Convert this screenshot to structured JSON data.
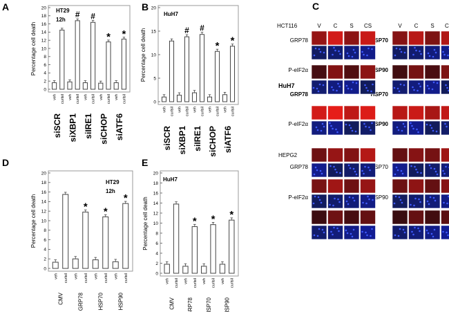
{
  "chart_data": [
    {
      "panel": "A",
      "type": "bar",
      "cell_line_label": "HT29",
      "time_label": "12h",
      "ylabel": "Percentage cell death",
      "ylim": [
        0,
        20
      ],
      "yticks": [
        "0",
        "2",
        "4",
        "6",
        "8",
        "10",
        "12",
        "14",
        "16",
        "18",
        "20"
      ],
      "bar_labels": [
        "veh",
        "curlsil"
      ],
      "groups": [
        "siSCR",
        "siXBP1",
        "siIRE1",
        "siCHOP",
        "siATF6"
      ],
      "series": [
        {
          "name": "veh",
          "values": [
            1.6,
            1.8,
            1.6,
            1.5,
            1.6
          ]
        },
        {
          "name": "curlsil",
          "values": [
            14.5,
            16.8,
            16.4,
            11.6,
            12.3
          ]
        }
      ],
      "markers": [
        "",
        "#",
        "#",
        "*",
        "*"
      ]
    },
    {
      "panel": "B",
      "type": "bar",
      "cell_line_label": "HuH7",
      "ylabel": "Percentage cell death",
      "ylim": [
        0,
        20
      ],
      "yticks": [
        "0",
        "5",
        "10",
        "15",
        "20"
      ],
      "bar_labels": [
        "veh",
        "curlsil"
      ],
      "groups": [
        "siSCR",
        "siXBP1",
        "siIRE1",
        "siCHOP",
        "siATF6"
      ],
      "series": [
        {
          "name": "veh",
          "values": [
            1.0,
            1.4,
            1.9,
            1.0,
            1.5
          ]
        },
        {
          "name": "curlsil",
          "values": [
            12.9,
            13.8,
            14.3,
            10.7,
            11.8
          ]
        }
      ],
      "markers": [
        "",
        "#",
        "#",
        "*",
        "*"
      ]
    },
    {
      "panel": "D",
      "type": "bar",
      "cell_line_label": "HT29",
      "time_label": "12h",
      "ylabel": "Percentage cell death",
      "ylim": [
        0,
        20
      ],
      "yticks": [
        "0",
        "2",
        "4",
        "6",
        "8",
        "10",
        "12",
        "14",
        "16",
        "18",
        "20"
      ],
      "bar_labels": [
        "veh",
        "curlsil"
      ],
      "groups": [
        "CMV",
        "GRP78",
        "HSP70",
        "HSP90"
      ],
      "series": [
        {
          "name": "veh",
          "values": [
            1.3,
            2.0,
            1.8,
            1.4
          ]
        },
        {
          "name": "curlsil",
          "values": [
            15.5,
            11.8,
            10.8,
            13.6
          ]
        }
      ],
      "markers": [
        "",
        "*",
        "*",
        "*"
      ]
    },
    {
      "panel": "E",
      "type": "bar",
      "cell_line_label": "HuH7",
      "ylabel": "Percentage cell death",
      "ylim": [
        0,
        20
      ],
      "yticks": [
        "0",
        "2",
        "4",
        "6",
        "8",
        "10",
        "12",
        "14",
        "16",
        "18",
        "20"
      ],
      "bar_labels": [
        "veh",
        "curlsil"
      ],
      "groups": [
        "CMV",
        "GRP78",
        "HSP70",
        "HSP90"
      ],
      "series": [
        {
          "name": "veh",
          "values": [
            1.8,
            1.4,
            1.4,
            1.8
          ]
        },
        {
          "name": "curlsil",
          "values": [
            13.8,
            9.3,
            9.7,
            10.6
          ]
        }
      ],
      "markers": [
        "",
        "*",
        "*",
        "*"
      ]
    }
  ],
  "panel_c": {
    "label": "C",
    "column_headers": [
      "V",
      "C",
      "S",
      "CS"
    ],
    "cell_lines": [
      "HCT116",
      "HuH7",
      "HEPG2"
    ],
    "left_labels": [
      "GRP78",
      "P-eIF2α",
      "GRP78",
      "P-eIF2α",
      "GRP78",
      "P-eIF2α"
    ],
    "right_labels": [
      "HSP70",
      "HSP90",
      "HSP70",
      "HSP90",
      "HSP70",
      "HSP90"
    ],
    "colors": {
      "stain": "#e8231a",
      "dapi": "#2342d8"
    }
  },
  "colors": {
    "bar_fill": "#ffffff",
    "bar_stroke": "#444444",
    "frame": "#999999",
    "text": "#000000"
  }
}
